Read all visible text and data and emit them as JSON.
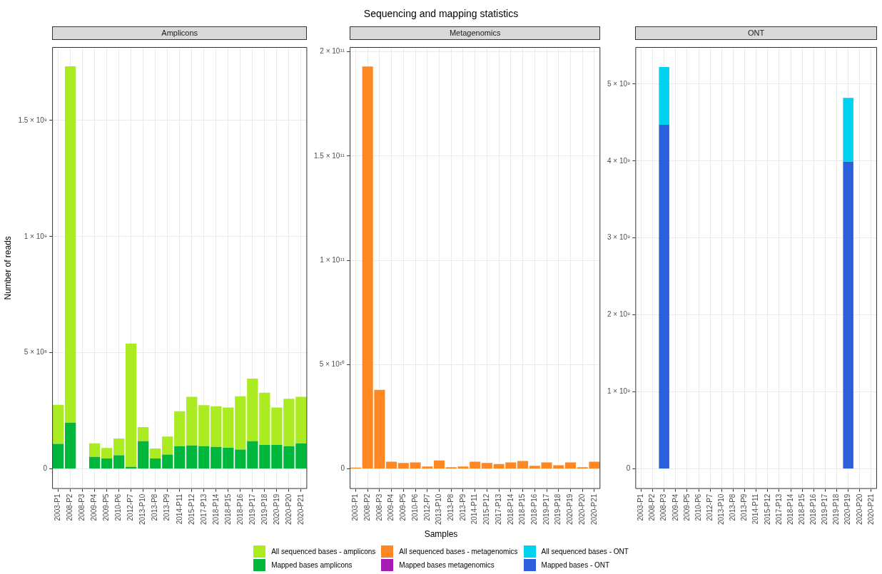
{
  "chart_data": [
    {
      "type": "bar",
      "subtitle": "Amplicons",
      "ylabel": "Number of reads",
      "stacked": true,
      "grid": true,
      "legend": "bottom",
      "categories": [
        "2003-P1",
        "2008-P2",
        "2008-P3",
        "2009-P4",
        "2009-P5",
        "2010-P6",
        "2012-P7",
        "2013-P10",
        "2013-P8",
        "2013-P9",
        "2014-P11",
        "2015-P12",
        "2017-P13",
        "2018-P14",
        "2018-P15",
        "2018-P16",
        "2019-P17",
        "2019-P18",
        "2020-P19",
        "2020-P20",
        "2020-P21"
      ],
      "ylim": [
        -86000000,
        1816000000
      ],
      "yticks": [
        {
          "value": 0,
          "label": "0"
        },
        {
          "value": 500000000,
          "label": "5 × 10⁸"
        },
        {
          "value": 1000000000,
          "label": "1 × 10⁹"
        },
        {
          "value": 1500000000,
          "label": "1.5 × 10⁹"
        }
      ],
      "series": [
        {
          "name": "Mapped bases amplicons",
          "color": "#00b73e",
          "values": [
            108000000,
            199000000,
            null,
            52000000,
            45000000,
            59000000,
            9000000,
            119000000,
            45000000,
            62000000,
            98000000,
            101000000,
            98000000,
            95000000,
            91000000,
            83000000,
            119000000,
            103000000,
            103000000,
            98000000,
            110000000
          ]
        },
        {
          "name": "All sequenced bases - amplicons",
          "color": "#aaeb22",
          "values": [
            168000000,
            1534000000,
            null,
            58000000,
            45000000,
            72000000,
            531000000,
            61000000,
            43000000,
            77000000,
            150000000,
            209000000,
            176000000,
            175000000,
            173000000,
            230000000,
            270000000,
            225000000,
            161000000,
            204000000,
            200000000
          ]
        }
      ]
    },
    {
      "type": "bar",
      "title": "Sequencing and mapping statistics",
      "subtitle": "Metagenomics",
      "xlabel": "Samples",
      "stacked": true,
      "grid": true,
      "legend": "bottom",
      "categories": [
        "2003-P1",
        "2008-P2",
        "2008-P3",
        "2009-P4",
        "2009-P5",
        "2010-P6",
        "2012-P7",
        "2013-P10",
        "2013-P8",
        "2013-P9",
        "2014-P11",
        "2015-P12",
        "2017-P13",
        "2018-P14",
        "2018-P15",
        "2018-P16",
        "2019-P17",
        "2019-P18",
        "2020-P19",
        "2020-P20",
        "2020-P21"
      ],
      "ylim": [
        -9600000000,
        202300000000
      ],
      "yticks": [
        {
          "value": 0,
          "label": "0"
        },
        {
          "value": 50000000000,
          "label": "5 × 10¹⁰"
        },
        {
          "value": 100000000000,
          "label": "1 × 10¹¹"
        },
        {
          "value": 150000000000,
          "label": "1.5 × 10¹¹"
        },
        {
          "value": 200000000000,
          "label": "2 × 10¹¹"
        }
      ],
      "series": [
        {
          "name": "Mapped bases metagenomics",
          "color": "#a51bb5",
          "values": [
            0,
            0,
            0,
            0,
            0,
            0,
            0,
            0,
            0,
            0,
            0,
            0,
            0,
            0,
            0,
            0,
            0,
            0,
            0,
            0,
            0
          ]
        },
        {
          "name": "All sequenced bases - metagenomics",
          "color": "#fc8723",
          "values": [
            600000000,
            193000000000,
            37900000000,
            3400000000,
            2800000000,
            3100000000,
            1100000000,
            4000000000,
            800000000,
            1100000000,
            3400000000,
            2800000000,
            2300000000,
            3100000000,
            3800000000,
            1500000000,
            3100000000,
            1700000000,
            3100000000,
            800000000,
            3400000000
          ]
        }
      ]
    },
    {
      "type": "bar",
      "subtitle": "ONT",
      "stacked": true,
      "grid": true,
      "legend": "bottom",
      "categories": [
        "2003-P1",
        "2008-P2",
        "2008-P3",
        "2009-P4",
        "2009-P5",
        "2010-P6",
        "2012-P7",
        "2013-P10",
        "2013-P8",
        "2013-P9",
        "2014-P11",
        "2015-P12",
        "2017-P13",
        "2018-P14",
        "2018-P15",
        "2018-P16",
        "2019-P17",
        "2019-P18",
        "2020-P19",
        "2020-P20",
        "2020-P21"
      ],
      "ylim": [
        -260000000,
        5480000000
      ],
      "yticks": [
        {
          "value": 0,
          "label": "0"
        },
        {
          "value": 1000000000,
          "label": "1 × 10⁹"
        },
        {
          "value": 2000000000,
          "label": "2 × 10⁹"
        },
        {
          "value": 3000000000,
          "label": "3 × 10⁹"
        },
        {
          "value": 4000000000,
          "label": "4 × 10⁹"
        },
        {
          "value": 5000000000,
          "label": "5 × 10⁹"
        }
      ],
      "series": [
        {
          "name": "Mapped bases - ONT",
          "color": "#2b5fdb",
          "values": [
            null,
            null,
            4470000000,
            null,
            null,
            null,
            null,
            null,
            null,
            null,
            null,
            null,
            null,
            null,
            null,
            null,
            null,
            null,
            3990000000,
            null,
            null
          ]
        },
        {
          "name": "All sequenced bases - ONT",
          "color": "#00d2ef",
          "values": [
            null,
            null,
            750000000,
            null,
            null,
            null,
            null,
            null,
            null,
            null,
            null,
            null,
            null,
            null,
            null,
            null,
            null,
            null,
            830000000,
            null,
            null
          ]
        }
      ]
    }
  ]
}
